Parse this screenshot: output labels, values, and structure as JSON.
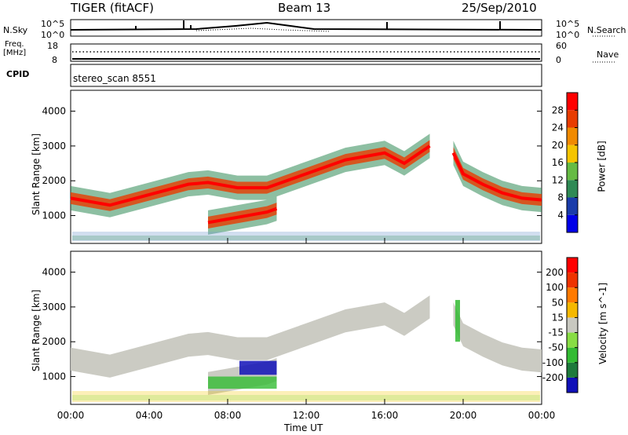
{
  "header": {
    "title": "TIGER (fitACF)",
    "beam": "Beam 13",
    "date": "25/Sep/2010"
  },
  "strip_nsky": {
    "left_label": "N.Sky",
    "right_label": "N.Search",
    "left_ticks": [
      "10^5",
      "10^0"
    ],
    "right_ticks": [
      "10^5",
      "10^0"
    ]
  },
  "strip_freq": {
    "left_label_1": "Freq.",
    "left_label_2": "[MHz]",
    "right_label": "Nave",
    "left_ticks": [
      "18",
      "8"
    ],
    "right_ticks": [
      "60",
      "0"
    ]
  },
  "strip_cpid": {
    "label": "CPID",
    "value": "stereo_scan 8551"
  },
  "colors": {
    "power_scale": [
      "#0000e8",
      "#1a3caa",
      "#2f8a55",
      "#66bb44",
      "#f5c400",
      "#f08a00",
      "#e83c00",
      "#ff0000"
    ],
    "velocity_scale": [
      "#1010b8",
      "#1e7a3c",
      "#33bb33",
      "#88dd44",
      "#c8c8c0",
      "#f5b800",
      "#ff7a00",
      "#ee3300",
      "#ff0000"
    ]
  },
  "chart_data": [
    {
      "type": "heatmap",
      "name": "power",
      "ylabel": "Slant Range [km]",
      "yticks": [
        "1000",
        "2000",
        "3000",
        "4000"
      ],
      "ylim": [
        200,
        4600
      ],
      "xlim": [
        0,
        24
      ],
      "colorbar": {
        "label": "Power [dB]",
        "ticks": [
          "4",
          "8",
          "12",
          "16",
          "20",
          "24",
          "28"
        ],
        "range": [
          0,
          32
        ]
      },
      "echo_bands": [
        {
          "region": "main echo band",
          "x": [
            0,
            2,
            4,
            6,
            7,
            8.5,
            10,
            12,
            14,
            16,
            17,
            18.3
          ],
          "y": [
            1500,
            1300,
            1600,
            1900,
            1950,
            1800,
            1800,
            2200,
            2600,
            2800,
            2500,
            3000
          ]
        },
        {
          "region": "lower echo band",
          "x": [
            7,
            8,
            9,
            10,
            10.5
          ],
          "y": [
            800,
            900,
            1000,
            1100,
            1200
          ]
        },
        {
          "region": "post-midnight band",
          "x": [
            19.5,
            20,
            21,
            22,
            23,
            24
          ],
          "y": [
            2800,
            2200,
            1900,
            1650,
            1500,
            1450
          ]
        }
      ]
    },
    {
      "type": "heatmap",
      "name": "velocity",
      "ylabel": "Slant Range [km]",
      "yticks": [
        "1000",
        "2000",
        "3000",
        "4000"
      ],
      "ylim": [
        200,
        4600
      ],
      "xlim": [
        0,
        24
      ],
      "colorbar": {
        "label": "Velocity [m s^-1]",
        "ticks": [
          "200",
          "100",
          "50",
          "15",
          "-15",
          "-50",
          "-100",
          "-200"
        ],
        "range": [
          -250,
          250
        ]
      }
    }
  ],
  "x_axis": {
    "ticks": [
      "00:00",
      "04:00",
      "08:00",
      "12:00",
      "16:00",
      "20:00",
      "00:00"
    ],
    "label": "Time UT"
  }
}
